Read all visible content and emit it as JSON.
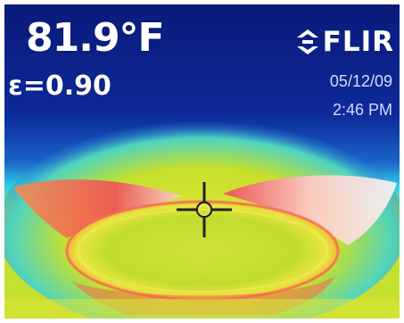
{
  "readout": {
    "temperature": "81.9°F",
    "emissivity": "ε=0.90"
  },
  "brand": {
    "logo_text": "FLIR",
    "logo_icon": "flir-diamond-logo-icon"
  },
  "timestamp": {
    "date": "05/12/09",
    "time": "2:46 PM"
  },
  "crosshair": {
    "icon": "spot-meter-crosshair-icon"
  },
  "palette": {
    "background_blue": "#0b1f8a",
    "cyan": "#2fd0e8",
    "yellow_green": "#c8e22a",
    "hot_pink": "#f0465a",
    "white_hot": "#fff0f0"
  }
}
